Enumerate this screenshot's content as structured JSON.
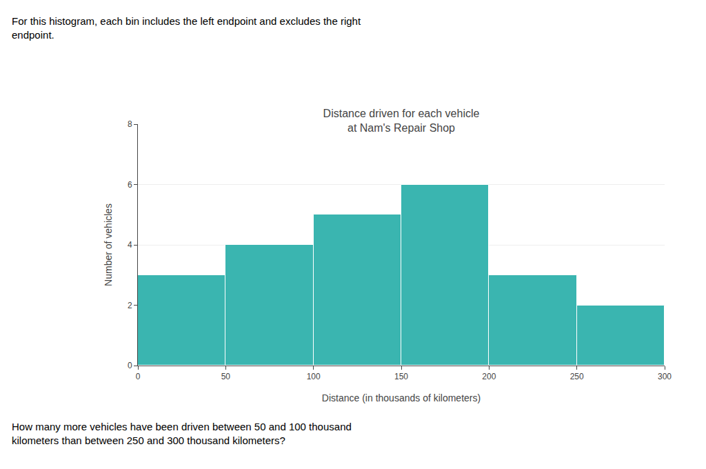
{
  "chart_data": {
    "type": "histogram",
    "title": "Distance driven for each vehicle\nat Nam's Repair Shop",
    "x_label": "Distance (in thousands of kilometers)",
    "y_label": "Number of vehicles",
    "bins": [
      0,
      50,
      100,
      150,
      200,
      250,
      300
    ],
    "values": [
      3,
      4,
      5,
      6,
      3,
      2
    ],
    "color": "#3ab5b0",
    "xlim": [
      0,
      300
    ],
    "xticks": [
      0,
      50,
      100,
      150,
      200,
      250,
      300
    ],
    "ylim": [
      0,
      8
    ],
    "yticks": [
      0,
      2,
      4,
      6,
      8
    ],
    "grid": true,
    "annotations": [
      "For this histogram, each bin includes the left endpoint and excludes the right\nendpoint.",
      "How many more vehicles have been driven between 50 and 100 thousand\nkilometers than between 250 and 300 thousand kilometers?"
    ]
  }
}
